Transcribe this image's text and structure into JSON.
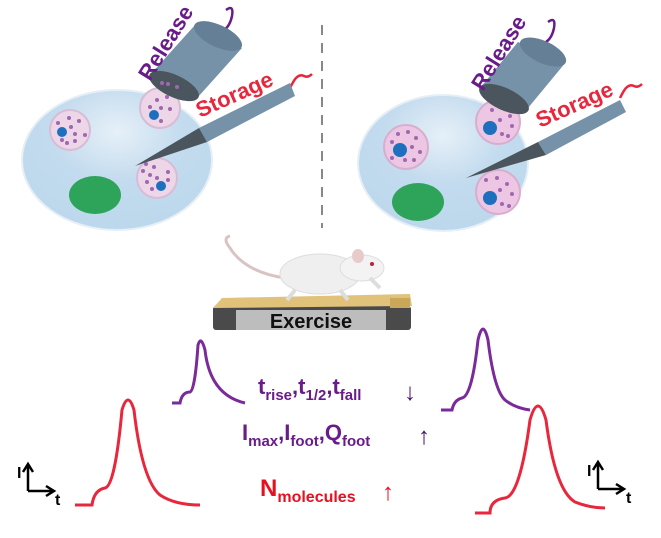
{
  "labels": {
    "release": "Release",
    "storage": "Storage",
    "exercise": "Exercise"
  },
  "parameters": {
    "kinetics": {
      "t": "t",
      "rise": "rise",
      "half": "1/2",
      "fall": "fall",
      "sep": ",",
      "trend": "↓"
    },
    "amplitude": {
      "I": "I",
      "Q": "Q",
      "max": "max",
      "foot": "foot",
      "sep": ",",
      "trend": "↑"
    },
    "molecules": {
      "N": "N",
      "sub": "molecules",
      "trend": "↑"
    }
  },
  "axes": {
    "y": "I",
    "x": "t"
  },
  "colors": {
    "release": "#6a1b8a",
    "storage": "#e8263c",
    "cell": "#bcd8ec",
    "nucleus": "#2ea35a",
    "vesicle": "#ecd6e8",
    "core": "#1f6fbf",
    "electrode": "#7592a8"
  }
}
